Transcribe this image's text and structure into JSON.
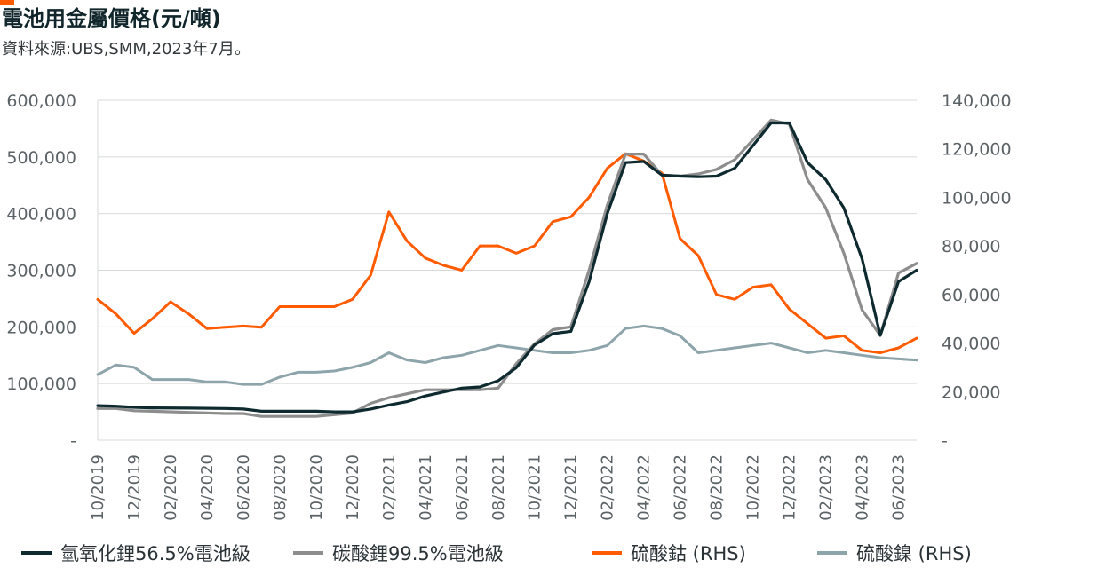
{
  "title": "電池用金屬價格(元/噸)",
  "source": "資料來源:UBS,SMM,2023年7月。",
  "colors": {
    "accent": "#ff5b00",
    "series_lioh": "#0e2a2f",
    "series_li2co3": "#8d8d8d",
    "series_cobalt": "#ff5b00",
    "series_nickel": "#8ea4ab",
    "grid": "#d7dadb"
  },
  "chart_data": {
    "type": "line",
    "xlabel": "",
    "ylabel": "",
    "x_tick_labels": [
      "10/2019",
      "12/2019",
      "02/2020",
      "04/2020",
      "06/2020",
      "08/2020",
      "10/2020",
      "12/2020",
      "02/2021",
      "04/2021",
      "06/2021",
      "08/2021",
      "10/2021",
      "12/2021",
      "02/2022",
      "04/2022",
      "06/2022",
      "08/2022",
      "10/2022",
      "12/2022",
      "02/2023",
      "04/2023",
      "06/2023"
    ],
    "x_range": [
      "2019-10",
      "2023-07"
    ],
    "left_axis": {
      "ylim": [
        0,
        600000
      ],
      "tick_labels": [
        "-",
        "100,000",
        "200,000",
        "300,000",
        "400,000",
        "500,000",
        "600,000"
      ]
    },
    "right_axis": {
      "ylim": [
        0,
        140000
      ],
      "tick_labels": [
        "-",
        "20,000",
        "40,000",
        "60,000",
        "80,000",
        "100,000",
        "120,000",
        "140,000"
      ]
    },
    "grid": true,
    "legend_position": "bottom",
    "series": [
      {
        "name": "氫氧化鋰56.5%電池級",
        "axis": "left",
        "x": [
          "2019-10",
          "2019-11",
          "2019-12",
          "2020-01",
          "2020-03",
          "2020-05",
          "2020-06",
          "2020-07",
          "2020-08",
          "2020-10",
          "2020-11",
          "2020-12",
          "2021-01",
          "2021-02",
          "2021-03",
          "2021-04",
          "2021-05",
          "2021-06",
          "2021-07",
          "2021-08",
          "2021-09",
          "2021-10",
          "2021-11",
          "2021-12",
          "2022-01",
          "2022-02",
          "2022-03",
          "2022-04",
          "2022-05",
          "2022-06",
          "2022-07",
          "2022-08",
          "2022-09",
          "2022-10",
          "2022-11",
          "2022-12",
          "2023-01",
          "2023-02",
          "2023-03",
          "2023-04",
          "2023-05",
          "2023-06",
          "2023-07"
        ],
        "y": [
          61000,
          60000,
          58000,
          57000,
          56500,
          56000,
          55000,
          51000,
          51000,
          51000,
          50000,
          50000,
          55000,
          62000,
          68000,
          78000,
          85000,
          92000,
          94000,
          105000,
          128000,
          168000,
          188000,
          192000,
          280000,
          400000,
          490000,
          492000,
          468000,
          466000,
          465000,
          466000,
          480000,
          520000,
          560000,
          560000,
          490000,
          460000,
          410000,
          320000,
          185000,
          280000,
          300000
        ]
      },
      {
        "name": "碳酸鋰99.5%電池級",
        "axis": "left",
        "x": [
          "2019-10",
          "2019-11",
          "2019-12",
          "2020-01",
          "2020-03",
          "2020-05",
          "2020-06",
          "2020-07",
          "2020-08",
          "2020-10",
          "2020-11",
          "2020-12",
          "2021-01",
          "2021-02",
          "2021-03",
          "2021-04",
          "2021-05",
          "2021-06",
          "2021-07",
          "2021-08",
          "2021-09",
          "2021-10",
          "2021-11",
          "2021-12",
          "2022-01",
          "2022-02",
          "2022-03",
          "2022-04",
          "2022-05",
          "2022-06",
          "2022-07",
          "2022-08",
          "2022-09",
          "2022-10",
          "2022-11",
          "2022-12",
          "2023-01",
          "2023-02",
          "2023-03",
          "2023-04",
          "2023-05",
          "2023-06",
          "2023-07"
        ],
        "y": [
          56000,
          56000,
          52000,
          51000,
          49000,
          47000,
          47000,
          42000,
          42000,
          42000,
          45000,
          48000,
          65000,
          75000,
          82000,
          89000,
          89000,
          89000,
          89000,
          92000,
          135000,
          170000,
          195000,
          200000,
          300000,
          415000,
          505000,
          505000,
          468000,
          466000,
          470000,
          478000,
          495000,
          530000,
          565000,
          558000,
          460000,
          410000,
          330000,
          230000,
          185000,
          295000,
          312000
        ]
      },
      {
        "name": "硫酸鈷 (RHS)",
        "axis": "right",
        "x": [
          "2019-10",
          "2019-11",
          "2019-12",
          "2020-01",
          "2020-02",
          "2020-03",
          "2020-04",
          "2020-05",
          "2020-06",
          "2020-07",
          "2020-08",
          "2020-09",
          "2020-10",
          "2020-11",
          "2020-12",
          "2021-01",
          "2021-02",
          "2021-03",
          "2021-04",
          "2021-05",
          "2021-06",
          "2021-07",
          "2021-08",
          "2021-09",
          "2021-10",
          "2021-11",
          "2021-12",
          "2022-01",
          "2022-02",
          "2022-03",
          "2022-04",
          "2022-05",
          "2022-06",
          "2022-07",
          "2022-08",
          "2022-09",
          "2022-10",
          "2022-11",
          "2022-12",
          "2023-01",
          "2023-02",
          "2023-03",
          "2023-04",
          "2023-05",
          "2023-06",
          "2023-07"
        ],
        "y": [
          58000,
          52000,
          44000,
          50000,
          57000,
          52000,
          46000,
          46500,
          47000,
          46500,
          55000,
          55000,
          55000,
          55000,
          58000,
          68000,
          94000,
          82000,
          75000,
          72000,
          70000,
          80000,
          80000,
          77000,
          80000,
          90000,
          92000,
          100000,
          112000,
          118000,
          115000,
          110000,
          83000,
          76000,
          60000,
          58000,
          63000,
          64000,
          54000,
          48000,
          42000,
          43000,
          37000,
          36000,
          38000,
          42000
        ]
      },
      {
        "name": "硫酸鎳 (RHS)",
        "axis": "right",
        "x": [
          "2019-10",
          "2019-11",
          "2019-12",
          "2020-01",
          "2020-02",
          "2020-03",
          "2020-04",
          "2020-05",
          "2020-06",
          "2020-07",
          "2020-08",
          "2020-09",
          "2020-10",
          "2020-11",
          "2020-12",
          "2021-01",
          "2021-02",
          "2021-03",
          "2021-04",
          "2021-05",
          "2021-06",
          "2021-07",
          "2021-08",
          "2021-09",
          "2021-10",
          "2021-11",
          "2021-12",
          "2022-01",
          "2022-02",
          "2022-03",
          "2022-04",
          "2022-05",
          "2022-06",
          "2022-07",
          "2022-08",
          "2022-09",
          "2022-10",
          "2022-11",
          "2022-12",
          "2023-01",
          "2023-02",
          "2023-03",
          "2023-04",
          "2023-05",
          "2023-06",
          "2023-07"
        ],
        "y": [
          27000,
          31000,
          30000,
          25000,
          25000,
          25000,
          24000,
          24000,
          23000,
          23000,
          26000,
          28000,
          28000,
          28500,
          30000,
          32000,
          36000,
          33000,
          32000,
          34000,
          35000,
          37000,
          39000,
          38000,
          37000,
          36000,
          36000,
          37000,
          39000,
          46000,
          47000,
          46000,
          43000,
          36000,
          37000,
          38000,
          39000,
          40000,
          38000,
          36000,
          37000,
          36000,
          35000,
          34000,
          33500,
          33000
        ]
      }
    ]
  }
}
